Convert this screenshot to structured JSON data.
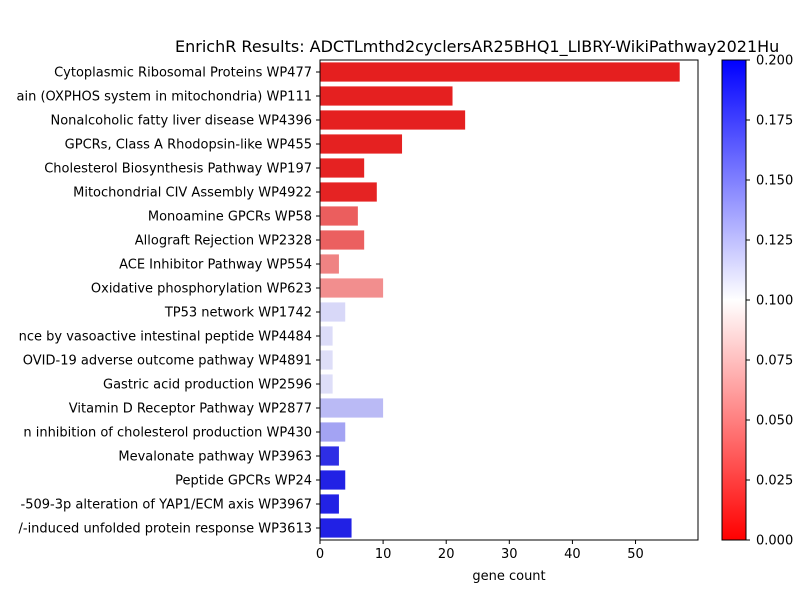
{
  "chart_data": {
    "type": "bar",
    "orientation": "horizontal",
    "title": "EnrichR Results: ADCTLmthd2cyclersAR25BHQ1_LIBRY-WikiPathway2021Hu",
    "xlabel": "gene count",
    "ylabel": "",
    "xlim": [
      0,
      59.9
    ],
    "xticks": [
      0,
      10,
      20,
      30,
      40,
      50
    ],
    "categories": [
      "Cytoplasmic Ribosomal Proteins WP477",
      "ain (OXPHOS system in mitochondria) WP111",
      "Nonalcoholic fatty liver disease WP4396",
      "GPCRs, Class A Rhodopsin-like WP455",
      "Cholesterol Biosynthesis Pathway WP197",
      "Mitochondrial CIV Assembly WP4922",
      "Monoamine GPCRs WP58",
      "Allograft Rejection WP2328",
      "ACE Inhibitor Pathway WP554",
      "Oxidative phosphorylation WP623",
      "TP53 network WP1742",
      "nce by vasoactive intestinal peptide WP4484",
      "OVID-19 adverse outcome pathway WP4891",
      "Gastric acid production WP2596",
      "Vitamin D Receptor Pathway WP2877",
      "n inhibition of cholesterol production WP430",
      "Mevalonate pathway WP3963",
      "Peptide GPCRs WP24",
      "-509-3p alteration of YAP1/ECM axis WP3967",
      "/-induced unfolded protein response WP3613"
    ],
    "values": [
      57,
      21,
      23,
      13,
      7,
      9,
      6,
      7,
      3,
      10,
      4,
      2,
      2,
      2,
      10,
      4,
      3,
      4,
      3,
      5
    ],
    "bar_colors": [
      "#e51f1f",
      "#e52020",
      "#e52020",
      "#e52121",
      "#e52222",
      "#e52323",
      "#eb5e5e",
      "#eb6060",
      "#ef8383",
      "#f28e8e",
      "#d8d8f8",
      "#dcdcf8",
      "#dedef8",
      "#dedef8",
      "#babaf5",
      "#a3a3f3",
      "#2e2ee5",
      "#2121e5",
      "#2222e5",
      "#2121e5"
    ],
    "colorbar": {
      "min": 0.0,
      "max": 0.2,
      "ticks": [
        "0.000",
        "0.025",
        "0.050",
        "0.075",
        "0.100",
        "0.125",
        "0.150",
        "0.175",
        "0.200"
      ],
      "colors": [
        "#ff0000",
        "#ffffff",
        "#0000ff"
      ]
    }
  }
}
